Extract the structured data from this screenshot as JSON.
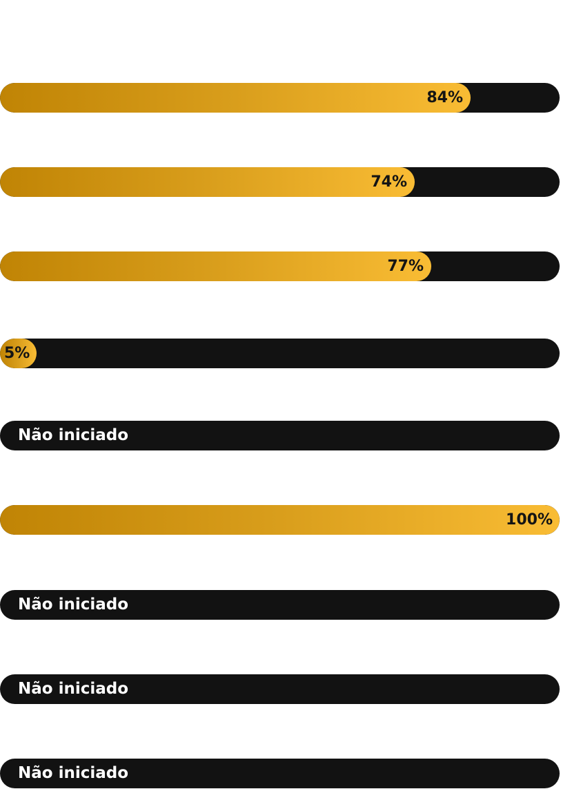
{
  "progress_bars": [
    {
      "label": "84%",
      "progress": 0.84
    },
    {
      "label": "74%",
      "progress": 0.74
    },
    {
      "label": "77%",
      "progress": 0.77
    },
    {
      "label": "5%",
      "progress": 0.05
    },
    {
      "label": "Não iniciado",
      "progress": 0
    },
    {
      "label": "100%",
      "progress": 1.0
    },
    {
      "label": "Não iniciado",
      "progress": 0
    },
    {
      "label": "Não iniciado",
      "progress": 0
    },
    {
      "label": "Não iniciado",
      "progress": 0
    }
  ],
  "colors": {
    "track": "#121212",
    "fill_start": "#c08405",
    "fill_end": "#f9bc34",
    "percent_text": "#141414",
    "status_text": "#ffffff"
  }
}
